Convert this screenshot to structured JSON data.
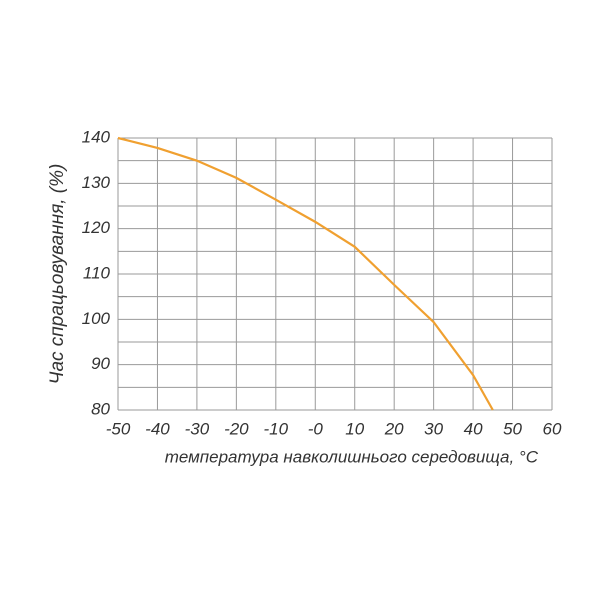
{
  "chart_data": {
    "type": "line",
    "x_label": "температура навколишнього середовища, °C",
    "y_label": "Час спрацьовування, (%)",
    "x": [
      -50,
      -40,
      -30,
      -20,
      -10,
      0,
      10,
      20,
      30,
      40,
      45
    ],
    "series": [
      {
        "color": "#f0a030",
        "values": [
          140,
          137.8,
          135,
          131.2,
          126.4,
          121.5,
          116,
          107.6,
          99.4,
          87.7,
          80
        ]
      }
    ],
    "xlim": [
      -50,
      60
    ],
    "xticks": [
      -50,
      -40,
      -30,
      -20,
      -10,
      {
        "value": 0,
        "label": "-0"
      },
      10,
      20,
      30,
      40,
      50,
      60
    ],
    "ylim": [
      80,
      140
    ],
    "yticks": [
      80,
      90,
      100,
      110,
      120,
      130,
      140
    ],
    "y_minor_grid": [
      85,
      95,
      105,
      115,
      125,
      135
    ],
    "grid": true
  }
}
